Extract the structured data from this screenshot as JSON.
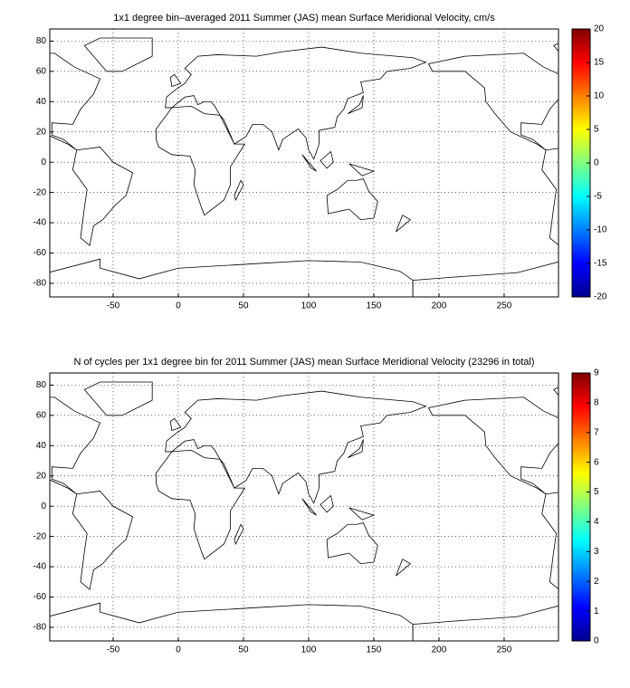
{
  "chart_data": [
    {
      "type": "map",
      "title": "1x1 degree bin–averaged 2011 Summer (JAS) mean Surface Meridional Velocity, cm/s",
      "xlim": [
        -98.6,
        291.7
      ],
      "ylim": [
        -89,
        88
      ],
      "xticks": [
        -50,
        0,
        50,
        100,
        150,
        200,
        250
      ],
      "yticks": [
        -80,
        -60,
        -40,
        -20,
        0,
        20,
        40,
        60,
        80
      ],
      "grid": true,
      "colormap": "jet",
      "colorbar": {
        "lim": [
          -20,
          20
        ],
        "ticks": [
          -20,
          -15,
          -10,
          -5,
          0,
          5,
          10,
          15,
          20
        ]
      }
    },
    {
      "type": "map",
      "title": "N of cycles per 1x1 degree bin for 2011 Summer (JAS) mean Surface Meridional Velocity (23296 in total)",
      "xlim": [
        -98.6,
        291.7
      ],
      "ylim": [
        -89,
        88
      ],
      "xticks": [
        -50,
        0,
        50,
        100,
        150,
        200,
        250
      ],
      "yticks": [
        -80,
        -60,
        -40,
        -20,
        0,
        20,
        40,
        60,
        80
      ],
      "grid": true,
      "colormap": "jet",
      "colorbar": {
        "lim": [
          0,
          9
        ],
        "ticks": [
          0,
          1,
          2,
          3,
          4,
          5,
          6,
          7,
          8,
          9
        ]
      }
    }
  ]
}
